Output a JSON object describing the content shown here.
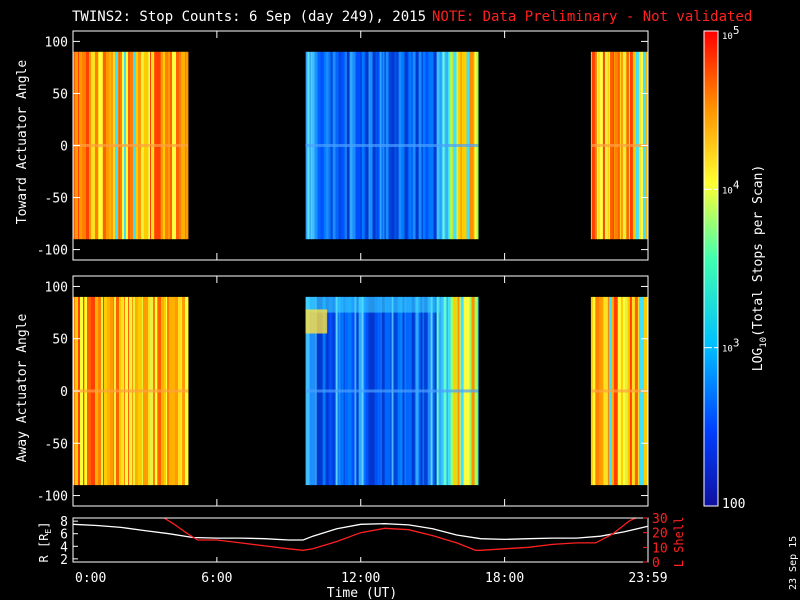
{
  "title": {
    "main": "TWINS2: Stop Counts:  6 Sep (day 249), 2015",
    "note": "NOTE: Data Preliminary - Not validated"
  },
  "stamp": "23 Sep 15",
  "chart_data": [
    {
      "type": "heatmap",
      "panel": "toward",
      "ylabel": "Toward Actuator Angle",
      "ylim": [
        -110,
        110
      ],
      "yticks": [
        100,
        50,
        0,
        -50,
        -100
      ],
      "data_range_deg": [
        -90,
        90
      ],
      "x_unit": "hours UT",
      "segments": [
        {
          "start": 0.0,
          "end": 4.8,
          "level": "high"
        },
        {
          "start": 9.7,
          "end": 16.9,
          "level": "low"
        },
        {
          "start": 21.6,
          "end": 23.98,
          "level": "high"
        }
      ]
    },
    {
      "type": "heatmap",
      "panel": "away",
      "ylabel": "Away Actuator Angle",
      "ylim": [
        -110,
        110
      ],
      "yticks": [
        100,
        50,
        0,
        -50,
        -100
      ],
      "data_range_deg": [
        -90,
        90
      ],
      "x_unit": "hours UT",
      "segments": [
        {
          "start": 0.0,
          "end": 4.8,
          "level": "high"
        },
        {
          "start": 9.7,
          "end": 16.9,
          "level": "low"
        },
        {
          "start": 21.6,
          "end": 23.98,
          "level": "high"
        }
      ]
    },
    {
      "type": "line",
      "panel": "orbit",
      "xlabel": "Time (UT)",
      "xticks": [
        "0:00",
        "6:00",
        "12:00",
        "18:00",
        "23:59"
      ],
      "xtick_hours": [
        0,
        6,
        12,
        18,
        23.98
      ],
      "y_left": {
        "label": "R [RE]",
        "label_main": "R [R",
        "label_sub": "E",
        "label_close": "]",
        "ticks": [
          2,
          4,
          6,
          8
        ],
        "lim": [
          1.5,
          8.5
        ]
      },
      "y_right": {
        "label": "L Shell",
        "ticks": [
          0,
          10,
          20,
          30
        ],
        "lim": [
          0,
          30
        ]
      },
      "series": [
        {
          "color": "#ffffff",
          "axis": "left",
          "x": [
            0,
            1,
            2,
            3,
            4,
            5,
            6,
            7,
            8,
            9,
            9.6,
            10,
            11,
            12,
            13,
            14,
            15,
            16,
            17,
            18,
            19,
            20,
            21,
            22,
            23,
            23.98
          ],
          "y": [
            7.5,
            7.3,
            7.0,
            6.5,
            6.0,
            5.4,
            5.3,
            5.3,
            5.2,
            5.0,
            5.0,
            5.6,
            6.8,
            7.5,
            7.6,
            7.4,
            6.8,
            5.8,
            5.2,
            5.1,
            5.2,
            5.3,
            5.3,
            5.6,
            6.3,
            7.2
          ]
        },
        {
          "color": "#ff2020",
          "axis": "right",
          "x": [
            3.8,
            4.2,
            4.8,
            5.2,
            6,
            7,
            8,
            9,
            9.6,
            10,
            11,
            12,
            13,
            14,
            15,
            16,
            16.8,
            17,
            18,
            19,
            20,
            21,
            21.8,
            22.5,
            23.2,
            23.6
          ],
          "y": [
            30,
            26,
            19,
            15,
            15,
            13,
            11,
            9,
            8,
            9,
            14,
            20,
            23,
            22,
            18,
            13,
            8,
            8,
            9,
            10,
            12,
            13,
            13,
            19,
            28,
            31
          ]
        }
      ]
    }
  ],
  "colorbar": {
    "label": "LOG10(Total Stops per Scan)",
    "label_pre": "LOG",
    "label_sub": "10",
    "label_post": "(Total Stops per Scan)",
    "ticks": [
      {
        "base": "10",
        "exp": "5",
        "value": 100000
      },
      {
        "base": "10",
        "exp": "4",
        "value": 10000
      },
      {
        "base": "10",
        "exp": "3",
        "value": 1000
      },
      {
        "base": "100",
        "exp": "",
        "value": 100
      }
    ],
    "range": [
      100,
      100000
    ],
    "colors": [
      "#1010a0",
      "#0040ff",
      "#00c0ff",
      "#40ffb0",
      "#ffff30",
      "#ff9000",
      "#ff0000"
    ]
  }
}
